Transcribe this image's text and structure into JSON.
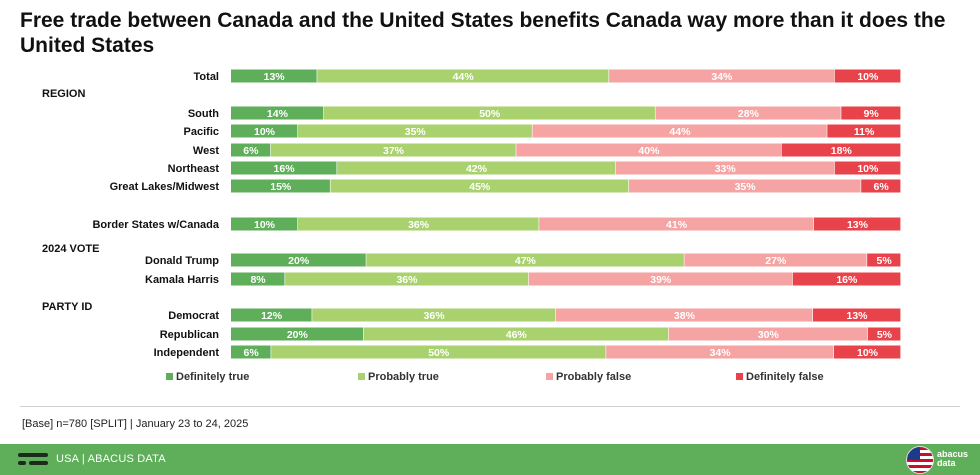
{
  "title": "Free trade between Canada and the United States benefits Canada way more than it does the United States",
  "base_note": "[Base] n=780 [SPLIT] | January 23 to 24, 2025",
  "footer": {
    "left_text": "USA | ABACUS DATA",
    "brand_top": "abacus",
    "brand_bottom": "data"
  },
  "colors": {
    "definitely_true": "#5fae5a",
    "probably_true": "#a9d26e",
    "probably_false": "#f6a3a3",
    "definitely_false": "#e8424a"
  },
  "chart_data": {
    "type": "bar",
    "orientation": "horizontal",
    "stacked": true,
    "legend_position": "bottom",
    "grid": false,
    "xlim": [
      0,
      100
    ],
    "series": [
      {
        "name": "Definitely true",
        "color": "#5fae5a"
      },
      {
        "name": "Probably true",
        "color": "#a9d26e"
      },
      {
        "name": "Probably false",
        "color": "#f6a3a3"
      },
      {
        "name": "Definitely false",
        "color": "#e8424a"
      }
    ],
    "rows": [
      {
        "kind": "bar",
        "label": "Total",
        "values": [
          13,
          44,
          34,
          10
        ]
      },
      {
        "kind": "header",
        "label": "REGION"
      },
      {
        "kind": "bar",
        "label": "South",
        "values": [
          14,
          50,
          28,
          9
        ]
      },
      {
        "kind": "bar",
        "label": "Pacific",
        "values": [
          10,
          35,
          44,
          11
        ]
      },
      {
        "kind": "bar",
        "label": "West",
        "values": [
          6,
          37,
          40,
          18
        ]
      },
      {
        "kind": "bar",
        "label": "Northeast",
        "values": [
          16,
          42,
          33,
          10
        ]
      },
      {
        "kind": "bar",
        "label": "Great Lakes/Midwest",
        "values": [
          15,
          45,
          35,
          6
        ]
      },
      {
        "kind": "bar",
        "label": "Border States w/Canada",
        "values": [
          10,
          36,
          41,
          13
        ]
      },
      {
        "kind": "header",
        "label": "2024 VOTE"
      },
      {
        "kind": "bar",
        "label": "Donald Trump",
        "values": [
          20,
          47,
          27,
          5
        ]
      },
      {
        "kind": "bar",
        "label": "Kamala Harris",
        "values": [
          8,
          36,
          39,
          16
        ]
      },
      {
        "kind": "header",
        "label": "PARTY ID"
      },
      {
        "kind": "bar",
        "label": "Democrat",
        "values": [
          12,
          36,
          38,
          13
        ]
      },
      {
        "kind": "bar",
        "label": "Republican",
        "values": [
          20,
          46,
          30,
          5
        ]
      },
      {
        "kind": "bar",
        "label": "Independent",
        "values": [
          6,
          50,
          34,
          10
        ]
      }
    ]
  }
}
